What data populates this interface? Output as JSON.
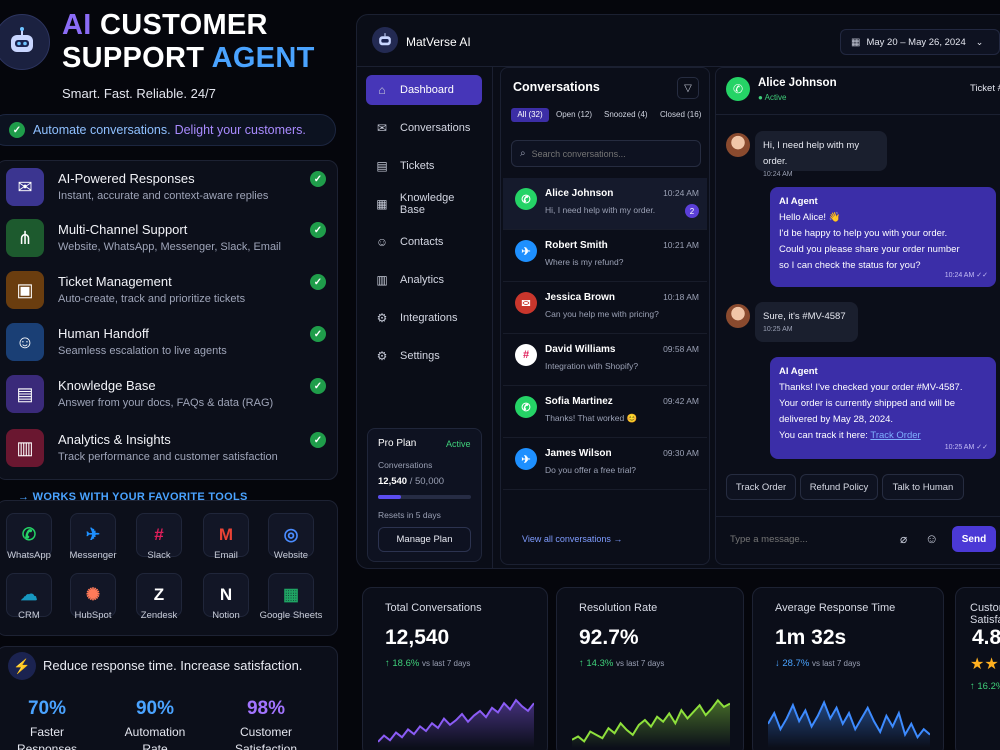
{
  "hero": {
    "title_ai": "AI",
    "title_line1": "CUSTOMER",
    "title_line2": "SUPPORT",
    "title_agent": "AGENT",
    "tagline": "Smart. Fast. Reliable. 24/7",
    "banner_a": "Automate conversations.",
    "banner_b": "Delight your customers."
  },
  "features": [
    {
      "title": "AI-Powered Responses",
      "desc": "Instant, accurate and context-aware replies",
      "icon": "chat-bubbles-icon",
      "color": "#3b3590"
    },
    {
      "title": "Multi-Channel Support",
      "desc": "Website, WhatsApp, Messenger, Slack, Email",
      "icon": "share-nodes-icon",
      "color": "#1d5a2e"
    },
    {
      "title": "Ticket Management",
      "desc": "Auto-create, track and prioritize tickets",
      "icon": "ticket-icon",
      "color": "#6a3d0f"
    },
    {
      "title": "Human Handoff",
      "desc": "Seamless escalation to live agents",
      "icon": "agent-icon",
      "color": "#1a3f75"
    },
    {
      "title": "Knowledge Base",
      "desc": "Answer from your docs, FAQs & data (RAG)",
      "icon": "book-icon",
      "color": "#3a2a7a"
    },
    {
      "title": "Analytics & Insights",
      "desc": "Track performance and customer satisfaction",
      "icon": "bar-chart-icon",
      "color": "#6a1730"
    }
  ],
  "tools": {
    "heading": "WORKS WITH YOUR FAVORITE TOOLS",
    "items": [
      {
        "label": "WhatsApp",
        "icon": "whatsapp-icon",
        "color": "#25d366"
      },
      {
        "label": "Messenger",
        "icon": "messenger-icon",
        "color": "#1e90ff"
      },
      {
        "label": "Slack",
        "icon": "slack-icon",
        "color": "#e01e5a"
      },
      {
        "label": "Email",
        "icon": "gmail-icon",
        "color": "#ea4335"
      },
      {
        "label": "Website",
        "icon": "globe-icon",
        "color": "#4a8cff"
      },
      {
        "label": "CRM",
        "icon": "salesforce-icon",
        "color": "#1798c1"
      },
      {
        "label": "HubSpot",
        "icon": "hubspot-icon",
        "color": "#ff7a59"
      },
      {
        "label": "Zendesk",
        "icon": "zendesk-icon",
        "color": "#ffffff"
      },
      {
        "label": "Notion",
        "icon": "notion-icon",
        "color": "#ffffff"
      },
      {
        "label": "Google Sheets",
        "icon": "sheets-icon",
        "color": "#1fa463"
      }
    ]
  },
  "promo": {
    "text": "Reduce response time. Increase satisfaction.",
    "stats": [
      {
        "value": "70%",
        "label1": "Faster",
        "label2": "Responses",
        "color": "#4aa3ff"
      },
      {
        "value": "90%",
        "label1": "Automation",
        "label2": "Rate",
        "color": "#4aa3ff"
      },
      {
        "value": "98%",
        "label1": "Customer",
        "label2": "Satisfaction",
        "color": "#a374ff"
      }
    ]
  },
  "app": {
    "name": "MatVerse AI",
    "date_range": "May 20 – May 26, 2024"
  },
  "nav": [
    {
      "label": "Dashboard",
      "icon": "home-icon",
      "glyph": "⌂"
    },
    {
      "label": "Conversations",
      "icon": "chat-icon",
      "glyph": "✉"
    },
    {
      "label": "Tickets",
      "icon": "ticket-icon",
      "glyph": "▤"
    },
    {
      "label": "Knowledge Base",
      "icon": "book-icon",
      "glyph": "▦"
    },
    {
      "label": "Contacts",
      "icon": "user-icon",
      "glyph": "☺"
    },
    {
      "label": "Analytics",
      "icon": "bar-chart-icon",
      "glyph": "▥"
    },
    {
      "label": "Integrations",
      "icon": "gear-icon",
      "glyph": "⚙"
    },
    {
      "label": "Settings",
      "icon": "settings-icon",
      "glyph": "⚙"
    }
  ],
  "plan": {
    "name": "Pro Plan",
    "status": "Active",
    "metric_label": "Conversations",
    "used": "12,540",
    "total": "/ 50,000",
    "usage_fraction": 0.25,
    "reset": "Resets in 5 days",
    "button": "Manage Plan"
  },
  "conversations": {
    "title": "Conversations",
    "tabs": [
      "All (32)",
      "Open (12)",
      "Snoozed (4)",
      "Closed (16)"
    ],
    "search_placeholder": "Search conversations...",
    "view_all": "View all conversations →",
    "items": [
      {
        "name": "Alice Johnson",
        "msg": "Hi, I need help with my order.",
        "time": "10:24 AM",
        "badge": "2",
        "icon": "whatsapp-icon",
        "color": "#25d366",
        "glyph": "✆"
      },
      {
        "name": "Robert Smith",
        "msg": "Where is my refund?",
        "time": "10:21 AM",
        "badge": "",
        "icon": "messenger-icon",
        "color": "#1e90ff",
        "glyph": "✈"
      },
      {
        "name": "Jessica Brown",
        "msg": "Can you help me with pricing?",
        "time": "10:18 AM",
        "badge": "",
        "icon": "gmail-icon",
        "color": "#e0443a",
        "glyph": "✉"
      },
      {
        "name": "David Williams",
        "msg": "Integration with Shopify?",
        "time": "09:58 AM",
        "badge": "",
        "icon": "slack-icon",
        "color": "#ffffff",
        "glyph": "#"
      },
      {
        "name": "Sofia Martinez",
        "msg": "Thanks! That worked 😊",
        "time": "09:42 AM",
        "badge": "",
        "icon": "whatsapp-icon",
        "color": "#25d366",
        "glyph": "✆"
      },
      {
        "name": "James Wilson",
        "msg": "Do you offer a free trial?",
        "time": "09:30 AM",
        "badge": "",
        "icon": "messenger-icon",
        "color": "#1e90ff",
        "glyph": "✈"
      }
    ]
  },
  "chat": {
    "contact": "Alice Johnson",
    "status": "Active",
    "header_right": "Ticket #",
    "placeholder": "Type a message...",
    "send": "Send",
    "m1": "Hi, I need help with my order.",
    "m1_time": "10:24 AM",
    "b1_title": "AI Agent",
    "b1_l1": "Hello Alice! 👋",
    "b1_l2": "I'd be happy to help you with your order.",
    "b1_l3": "Could you please share your order number",
    "b1_l4": "so I can check the status for you?",
    "b1_time": "10:24 AM ✓✓",
    "m2": "Sure, it's #MV-4587",
    "m2_time": "10:25 AM",
    "b2_title": "AI Agent",
    "b2_l1": "Thanks! I've checked your order #MV-4587.",
    "b2_l2": "Your order is currently shipped and will be",
    "b2_l3": "delivered by May 28, 2024.",
    "b2_l4": "You can track it here:",
    "b2_link": "Track Order",
    "b2_time": "10:25 AM ✓✓",
    "quick": [
      "Track Order",
      "Refund Policy",
      "Talk to Human"
    ]
  },
  "stats": [
    {
      "title": "Total Conversations",
      "value": "12,540",
      "delta": "↑ 18.6%",
      "vs": "vs last 7 days",
      "color": "#8b5cf6",
      "dcolor": "#3fd07a",
      "series": [
        30,
        34,
        31,
        36,
        33,
        38,
        35,
        40,
        37,
        42,
        39,
        45,
        41,
        44,
        48,
        43,
        47,
        50,
        46,
        52,
        49,
        55,
        51,
        57,
        53,
        50,
        55
      ]
    },
    {
      "title": "Resolution Rate",
      "value": "92.7%",
      "delta": "↑ 14.3%",
      "vs": "vs last 7 days",
      "color": "#8ee03c",
      "dcolor": "#3fd07a",
      "series": [
        28,
        30,
        27,
        33,
        31,
        29,
        35,
        32,
        38,
        34,
        31,
        37,
        40,
        36,
        42,
        39,
        44,
        38,
        46,
        41,
        45,
        49,
        43,
        47,
        52,
        48,
        50
      ]
    },
    {
      "title": "Average Response Time",
      "value": "1m 32s",
      "delta": "↓ 28.7%",
      "vs": "vs last 7 days",
      "color": "#3d8bff",
      "dcolor": "#4aa3ff",
      "series": [
        40,
        44,
        38,
        42,
        47,
        41,
        45,
        39,
        43,
        48,
        42,
        46,
        40,
        44,
        38,
        42,
        46,
        41,
        37,
        43,
        39,
        44,
        36,
        40,
        35,
        38,
        36
      ]
    },
    {
      "title": "Customer Satisfaction",
      "value": "4.8",
      "delta": "↑ 16.2%",
      "vs": "",
      "color": "#ffb020",
      "dcolor": "#3fd07a",
      "stars": "★★"
    }
  ]
}
